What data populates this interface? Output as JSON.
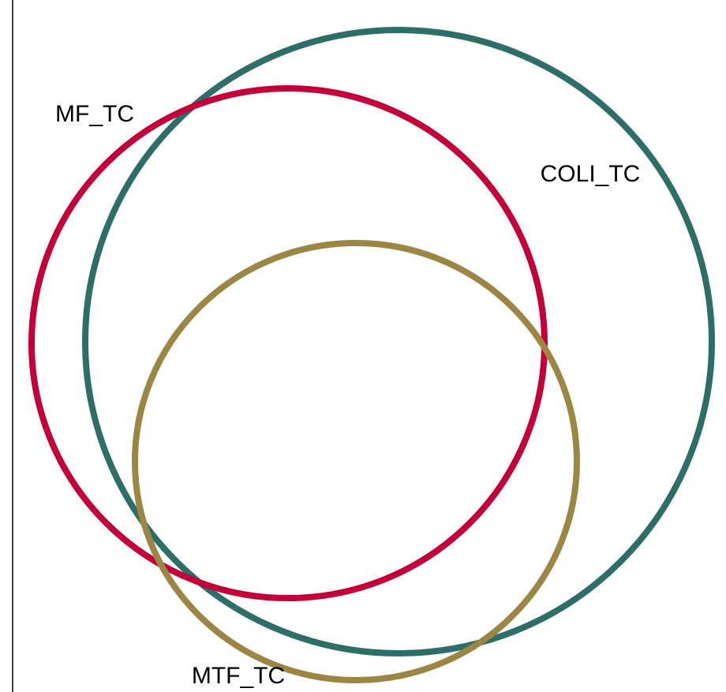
{
  "sets": [
    {
      "label": "COLI_TC",
      "color": "#2e6e68"
    },
    {
      "label": "MF_TC",
      "color": "#c4003a"
    },
    {
      "label": "MTF_TC",
      "color": "#9c8644"
    }
  ]
}
